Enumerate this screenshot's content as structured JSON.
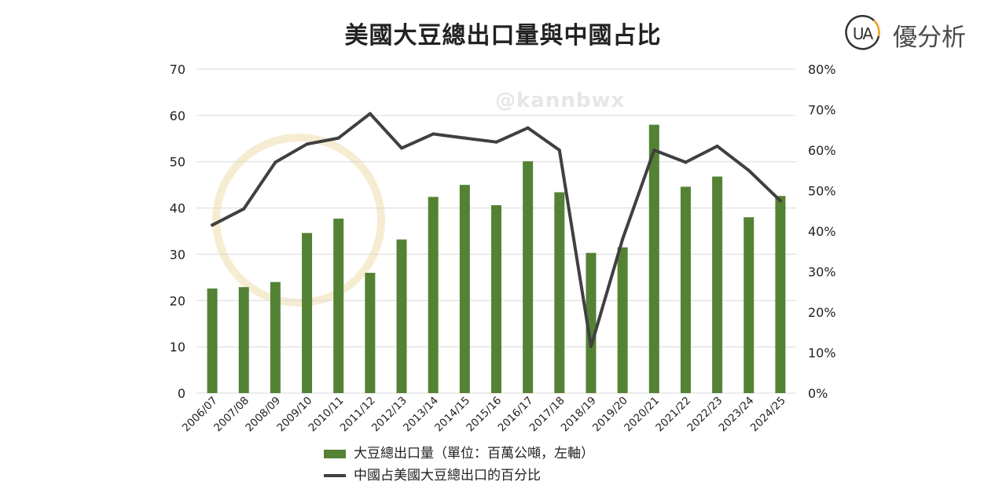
{
  "title": "美國大豆總出口量與中國占比",
  "logo": {
    "mark": "UA",
    "text": "優分析"
  },
  "watermark": "@kannbwx",
  "colors": {
    "bar": "#548235",
    "line": "#404040",
    "grid": "#d9d9d9",
    "watermark": "#f3e3b5"
  },
  "chart_data": {
    "type": "bar",
    "categories": [
      "2006/07",
      "2007/08",
      "2008/09",
      "2009/10",
      "2010/11",
      "2011/12",
      "2012/13",
      "2013/14",
      "2014/15",
      "2015/16",
      "2016/17",
      "2017/18",
      "2018/19",
      "2019/20",
      "2020/21",
      "2021/22",
      "2022/23",
      "2023/24",
      "2024/25"
    ],
    "series": [
      {
        "name": "大豆總出口量（單位：百萬公噸，左軸）",
        "type": "bar",
        "axis": "left",
        "values": [
          22.6,
          22.9,
          24.0,
          34.6,
          37.7,
          26.0,
          33.2,
          42.4,
          45.0,
          40.6,
          50.1,
          43.4,
          30.3,
          31.5,
          58.0,
          44.6,
          46.8,
          38.0,
          42.6
        ]
      },
      {
        "name": "中國占美國大豆總出口的百分比",
        "type": "line",
        "axis": "right",
        "values": [
          41.5,
          45.5,
          57.0,
          61.5,
          63.0,
          69.0,
          60.5,
          64.0,
          63.0,
          62.0,
          65.5,
          60.0,
          11.5,
          38.0,
          60.0,
          57.0,
          61.0,
          55.0,
          47.5
        ]
      }
    ],
    "y_left": {
      "min": 0,
      "max": 70,
      "ticks": [
        "0",
        "10",
        "20",
        "30",
        "40",
        "50",
        "60",
        "70"
      ]
    },
    "y_right": {
      "min": 0,
      "max": 80,
      "ticks": [
        "0%",
        "10%",
        "20%",
        "30%",
        "40%",
        "50%",
        "60%",
        "70%",
        "80%"
      ]
    },
    "grid": true,
    "legend_position": "bottom"
  }
}
